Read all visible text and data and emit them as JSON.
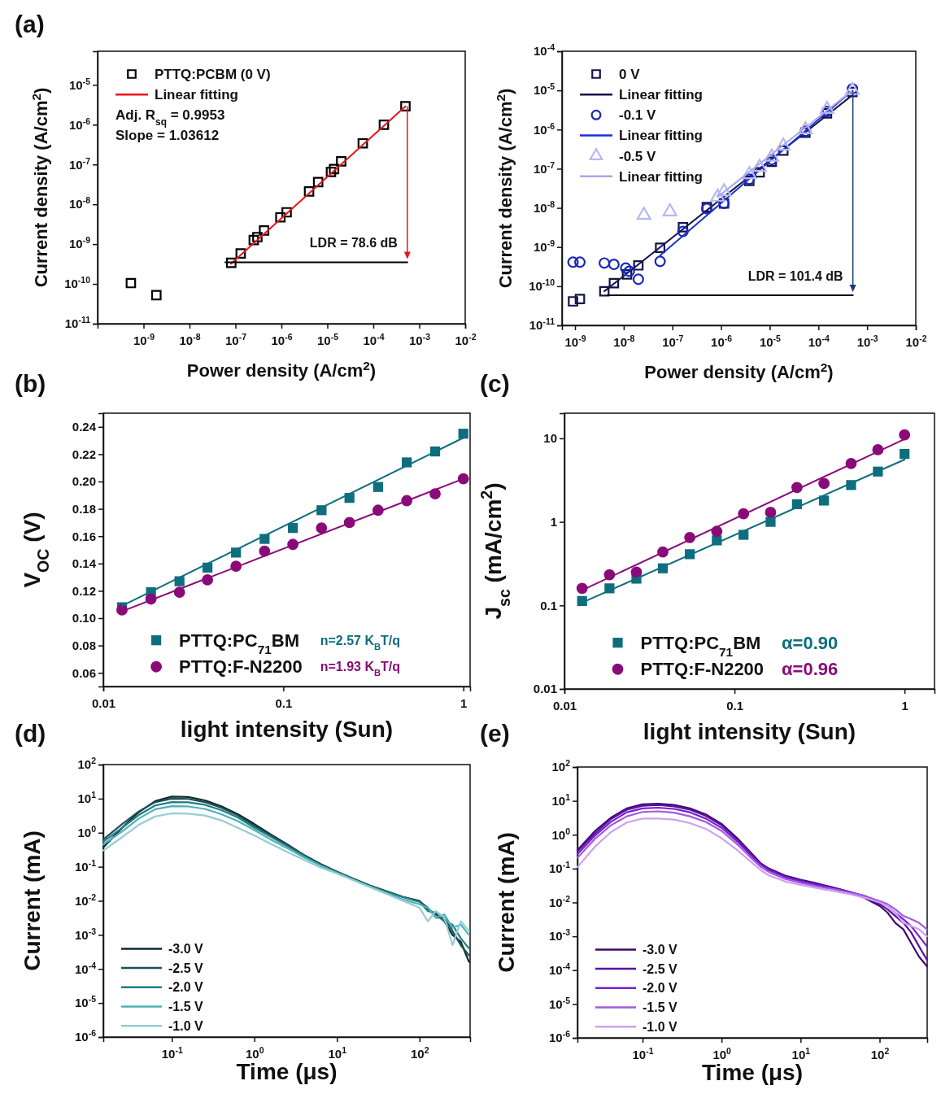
{
  "chart_data": [
    {
      "type": "scatter",
      "title": "(a)",
      "xlabel": "Power density (A/cm$^{2}$)",
      "ylabel": "Current density (A/cm$^{2}$)",
      "log": "xy",
      "legend": "top left",
      "xlim": [
        1e-10,
        0.01
      ],
      "ylim": [
        1e-11,
        7e-05
      ],
      "xticks": [
        {
          "value": 1e-09,
          "label": "10$^{-9}$"
        },
        {
          "value": 1e-08,
          "label": "10$^{-8}$"
        },
        {
          "value": 1e-07,
          "label": "10$^{-7}$"
        },
        {
          "value": 1e-06,
          "label": "10$^{-6}$"
        },
        {
          "value": 1e-05,
          "label": "10$^{-5}$"
        },
        {
          "value": 0.0001,
          "label": "10$^{-4}$"
        },
        {
          "value": 0.001,
          "label": "10$^{-3}$"
        },
        {
          "value": 0.01,
          "label": "10$^{-2}$"
        }
      ],
      "yticks": [
        {
          "value": 1e-11,
          "label": "10$^{-11}$"
        },
        {
          "value": 1e-10,
          "label": "10$^{-10}$"
        },
        {
          "value": 1e-09,
          "label": "10$^{-9}$"
        },
        {
          "value": 1e-08,
          "label": "10$^{-8}$"
        },
        {
          "value": 1e-07,
          "label": "10$^{-7}$"
        },
        {
          "value": 1e-06,
          "label": "10$^{-6}$"
        },
        {
          "value": 1e-05,
          "label": "10$^{-5}$"
        }
      ],
      "series": [
        {
          "name": "PTTQ:PCBM (0 V)",
          "type": "scatter",
          "marker": "square",
          "color": "#000000",
          "x": [
            5.3e-10,
            1.9e-09,
            8.1e-08,
            1.3e-07,
            2.5e-07,
            3e-07,
            4.2e-07,
            9.5e-07,
            1.3e-06,
            4e-06,
            6.3e-06,
            1.2e-05,
            1.4e-05,
            2e-05,
            5.9e-05,
            0.00017,
            0.0005
          ],
          "values": [
            1.05e-10,
            5.2e-11,
            3.4e-10,
            5.8e-10,
            1.26e-09,
            1.5e-09,
            2.2e-09,
            4.7e-09,
            6.3e-09,
            2.1e-08,
            3.6e-08,
            6.5e-08,
            7.7e-08,
            1.2e-07,
            3.4e-07,
            1e-06,
            2.9e-06
          ]
        },
        {
          "name": "Linear fitting",
          "type": "line",
          "color": "#e8141c",
          "x": [
            8e-08,
            0.0005
          ],
          "values": [
            3.2e-10,
            2.9e-06
          ]
        },
        {
          "type": "line",
          "color": "#000000",
          "x": [
            6e-08,
            0.00055
          ],
          "values": [
            3.5e-10,
            3.5e-10
          ]
        }
      ],
      "annotations": [
        "Adj. R$_{sq}$ = 0.9953",
        "Slope = 1.03612",
        "LDR = 78.6 dB"
      ]
    },
    {
      "type": "scatter",
      "xlabel": "Power density (A/cm$^{2}$)",
      "ylabel": "Current density (A/cm$^{2}$)",
      "log": "xy",
      "legend": "top left",
      "xlim": [
        5.4e-10,
        0.01
      ],
      "ylim": [
        1e-11,
        0.0001
      ],
      "xticks": [
        {
          "value": 1e-09,
          "label": "10$^{-9}$"
        },
        {
          "value": 1e-08,
          "label": "10$^{-8}$"
        },
        {
          "value": 1e-07,
          "label": "10$^{-7}$"
        },
        {
          "value": 1e-06,
          "label": "10$^{-6}$"
        },
        {
          "value": 1e-05,
          "label": "10$^{-5}$"
        },
        {
          "value": 0.0001,
          "label": "10$^{-4}$"
        },
        {
          "value": 0.001,
          "label": "10$^{-3}$"
        },
        {
          "value": 0.01,
          "label": "10$^{-2}$"
        }
      ],
      "yticks": [
        {
          "value": 1e-11,
          "label": "10$^{-11}$"
        },
        {
          "value": 1e-10,
          "label": "10$^{-10}$"
        },
        {
          "value": 1e-09,
          "label": "10$^{-9}$"
        },
        {
          "value": 1e-08,
          "label": "10$^{-8}$"
        },
        {
          "value": 1e-07,
          "label": "10$^{-7}$"
        },
        {
          "value": 1e-06,
          "label": "10$^{-6}$"
        },
        {
          "value": 1e-05,
          "label": "10$^{-5}$"
        },
        {
          "value": 0.0001,
          "label": "10$^{-4}$"
        }
      ],
      "series": [
        {
          "name": "0 V",
          "type": "scatter",
          "marker": "square",
          "color": "#14144a",
          "x": [
            9.1e-10,
            1.26e-09,
            4e-09,
            6.3e-09,
            1.17e-08,
            2e-08,
            5.6e-08,
            1.65e-07,
            5.1e-07,
            1.15e-06,
            3.8e-06,
            6.2e-06,
            1.1e-05,
            1.9e-05,
            5.4e-05,
            0.00015,
            0.0005
          ],
          "values": [
            4.1e-11,
            4.7e-11,
            7.4e-11,
            1.2e-10,
            2e-10,
            3.4e-10,
            9.6e-10,
            3.2e-09,
            1.05e-08,
            1.3e-08,
            4.9e-08,
            8.1e-08,
            1.5e-07,
            2.9e-07,
            8.3e-07,
            2.6e-06,
            9.1e-06
          ]
        },
        {
          "name": "Linear fitting",
          "type": "line",
          "color": "#14144a",
          "x": [
            4e-09,
            0.0005
          ],
          "values": [
            7.4e-11,
            7.6e-06
          ]
        },
        {
          "name": "-0.1 V",
          "type": "scatter",
          "marker": "circle",
          "color": "#1a28b8",
          "x": [
            9.1e-10,
            1.26e-09,
            4e-09,
            6.3e-09,
            1.1e-08,
            1.3e-08,
            2e-08,
            5.6e-08,
            1.65e-07,
            5.1e-07,
            1.15e-06,
            3.8e-06,
            1.1e-05,
            5.4e-05,
            0.00015,
            0.0005
          ],
          "values": [
            4.1e-10,
            4.1e-10,
            3.9e-10,
            3.6e-10,
            2.9e-10,
            2.4e-10,
            1.5e-10,
            4.3e-10,
            2.5e-09,
            9.6e-09,
            1.3e-08,
            5.4e-08,
            1.7e-07,
            9.1e-07,
            2.9e-06,
            1.1e-05
          ]
        },
        {
          "name": "Linear fitting",
          "type": "line",
          "color": "#1c30d8",
          "x": [
            5.6e-08,
            0.0005
          ],
          "values": [
            6.1e-10,
            1e-05
          ]
        },
        {
          "name": "-0.5 V",
          "type": "scatter",
          "marker": "triangle",
          "color": "#b8b8f2",
          "x": [
            2.6e-08,
            8.9e-08,
            8.5e-07,
            1.15e-06,
            3.8e-06,
            6.2e-06,
            1.1e-05,
            1.9e-05,
            5.4e-05,
            0.00015,
            0.0005
          ],
          "values": [
            6.5e-09,
            8e-09,
            1.9e-08,
            2.6e-08,
            7.1e-08,
            1.1e-07,
            2e-07,
            3.8e-07,
            1e-06,
            3.3e-06,
            1e-05
          ]
        },
        {
          "name": "Linear fitting",
          "type": "line",
          "color": "#a8a8ee",
          "x": [
            8.5e-07,
            0.0005
          ],
          "values": [
            1.9e-08,
            1e-05
          ]
        },
        {
          "type": "line",
          "color": "#000000",
          "x": [
            4.6e-09,
            0.00051
          ],
          "values": [
            5.9e-11,
            5.9e-11
          ]
        }
      ],
      "annotations": [
        "LDR = 101.4 dB"
      ]
    },
    {
      "type": "scatter",
      "title": "(b)",
      "xlabel": "light intensity (Sun)",
      "ylabel": "V$_{OC}$ (V)",
      "log": "x",
      "legend": "bottom",
      "xlim": [
        0.01,
        1.09
      ],
      "ylim": [
        0.05,
        0.25
      ],
      "xticks": [
        0.01,
        0.1,
        1
      ],
      "yticks": [
        0.06,
        0.08,
        {
          "value": 0.1,
          "label": "0.10"
        },
        0.12,
        0.14,
        0.16,
        0.18,
        {
          "value": 0.2,
          "label": "0.20"
        },
        0.22,
        0.24
      ],
      "x": [
        0.0127,
        0.0184,
        0.0265,
        0.0379,
        0.0546,
        0.0787,
        0.113,
        0.163,
        0.233,
        0.336,
        0.485,
        0.697,
        1
      ],
      "series": [
        {
          "name": "PTTQ:PC$_{71}$BM",
          "type": "scatter",
          "marker": "square",
          "color": "#0e6e7e",
          "values": [
            0.108,
            0.119,
            0.127,
            0.137,
            0.148,
            0.158,
            0.166,
            0.179,
            0.188,
            0.196,
            0.214,
            0.222,
            0.235
          ]
        },
        {
          "name": "PTTQ:F-N2200",
          "type": "scatter",
          "marker": "circle",
          "color": "#8b0a7a",
          "values": [
            0.106,
            0.114,
            0.119,
            0.128,
            0.138,
            0.149,
            0.154,
            0.166,
            0.17,
            0.179,
            0.186,
            0.191,
            0.202
          ]
        },
        {
          "type": "line",
          "color": "#0e6e7e",
          "x": [
            0.0127,
            1
          ],
          "values": [
            0.109,
            0.232
          ]
        },
        {
          "type": "line",
          "color": "#8b0a7a",
          "x": [
            0.0127,
            1
          ],
          "values": [
            0.105,
            0.202
          ]
        }
      ],
      "annotations": [
        "n=2.57 K$_{B}$T/q",
        "n=1.93 K$_{B}$T/q"
      ]
    },
    {
      "type": "scatter",
      "title": "(c)",
      "xlabel": "light intensity (Sun)",
      "ylabel": "J$_{sc}$ (mA/cm$^{2}$)",
      "log": "xy",
      "legend": "bottom",
      "xlim": [
        0.01,
        1.5
      ],
      "ylim": [
        0.01,
        20
      ],
      "xticks": [
        0.01,
        0.1,
        1
      ],
      "yticks": [
        0.01,
        0.1,
        1,
        10
      ],
      "x": [
        0.0127,
        0.0184,
        0.0265,
        0.0379,
        0.0546,
        0.0787,
        0.113,
        0.163,
        0.233,
        0.336,
        0.485,
        0.697,
        1
      ],
      "series": [
        {
          "name": "PTTQ:PC$_{71}$BM",
          "type": "scatter",
          "marker": "square",
          "color": "#0e6e7e",
          "values": [
            0.113,
            0.16,
            0.209,
            0.278,
            0.41,
            0.6,
            0.7,
            1.0,
            1.63,
            1.8,
            2.76,
            4.0,
            6.5
          ]
        },
        {
          "name": "PTTQ:F-N2200",
          "type": "scatter",
          "marker": "circle",
          "color": "#8b0a7a",
          "values": [
            0.16,
            0.233,
            0.25,
            0.436,
            0.65,
            0.77,
            1.25,
            1.3,
            2.58,
            2.88,
            5.0,
            7.3,
            11
          ]
        },
        {
          "type": "line",
          "color": "#0e6e7e",
          "x": [
            0.0127,
            1
          ],
          "values": [
            0.108,
            5.57
          ]
        },
        {
          "type": "line",
          "color": "#8b0a7a",
          "x": [
            0.0127,
            1
          ],
          "values": [
            0.152,
            9.8
          ]
        }
      ],
      "annotations": [
        "α=0.90",
        "α=0.96"
      ]
    },
    {
      "type": "line",
      "title": "(d)",
      "xlabel": "Time (μs)",
      "ylabel": "Current (mA)",
      "log": "xy",
      "legend": "bottom left",
      "xlim": [
        0.0148,
        410
      ],
      "ylim": [
        1e-06,
        100
      ],
      "xticks": [
        {
          "value": 0.1,
          "label": "10$^{-1}$"
        },
        {
          "value": 1,
          "label": "10$^{0}$"
        },
        {
          "value": 10,
          "label": "10$^{1}$"
        },
        {
          "value": 100,
          "label": "10$^{2}$"
        }
      ],
      "yticks": [
        {
          "value": 1e-06,
          "label": "10$^{-6}$"
        },
        {
          "value": 1e-05,
          "label": "10$^{-5}$"
        },
        {
          "value": 0.0001,
          "label": "10$^{-4}$"
        },
        {
          "value": 0.001,
          "label": "10$^{-3}$"
        },
        {
          "value": 0.01,
          "label": "10$^{-2}$"
        },
        {
          "value": 0.1,
          "label": "10$^{-1}$"
        },
        {
          "value": 1,
          "label": "10$^{0}$"
        },
        {
          "value": 10,
          "label": "10$^{1}$"
        },
        {
          "value": 100,
          "label": "10$^{2}$"
        }
      ],
      "x": [
        0.0148,
        0.0251,
        0.0398,
        0.0631,
        0.1,
        0.158,
        0.251,
        0.398,
        0.631,
        1,
        1.58,
        2.51,
        3.98,
        6.31,
        10,
        15.8,
        25.1,
        39.8,
        63.1,
        100,
        126,
        158,
        200,
        251,
        316,
        398
      ],
      "series": [
        {
          "name": "-3.0 V",
          "color": "#0b2b2e",
          "values": [
            0.37,
            1.4,
            4.0,
            8.5,
            11.5,
            11.2,
            8.9,
            6.0,
            3.5,
            1.8,
            0.89,
            0.45,
            0.22,
            0.12,
            0.071,
            0.045,
            0.028,
            0.019,
            0.013,
            0.01,
            0.0056,
            0.004,
            0.0025,
            0.001,
            0.00063,
            0.00016
          ]
        },
        {
          "name": "-2.5 V",
          "color": "#1f4f52",
          "values": [
            0.63,
            1.8,
            4.2,
            7.9,
            10,
            9.8,
            7.9,
            5.4,
            3.2,
            1.6,
            0.83,
            0.43,
            0.22,
            0.12,
            0.071,
            0.044,
            0.028,
            0.019,
            0.013,
            0.0095,
            0.0063,
            0.0032,
            0.0032,
            0.0013,
            0.0005,
            0.00025
          ]
        },
        {
          "name": "-2.0 V",
          "color": "#1f7f86",
          "values": [
            0.54,
            1.4,
            3.3,
            6.3,
            7.9,
            7.8,
            6.6,
            4.6,
            2.8,
            1.4,
            0.76,
            0.4,
            0.21,
            0.11,
            0.069,
            0.043,
            0.027,
            0.018,
            0.013,
            0.0093,
            0.005,
            0.0045,
            0.0025,
            0.002,
            0.00079,
            0.0004
          ]
        },
        {
          "name": "-1.5 V",
          "color": "#4fb0b8",
          "values": [
            0.45,
            1.1,
            2.6,
            4.9,
            6.0,
            5.9,
            5.0,
            3.5,
            2.2,
            1.2,
            0.63,
            0.35,
            0.19,
            0.11,
            0.066,
            0.042,
            0.026,
            0.017,
            0.011,
            0.0079,
            0.0063,
            0.0032,
            0.004,
            0.0016,
            0.002,
            0.001
          ]
        },
        {
          "name": "-1.0 V",
          "color": "#93cdd2",
          "values": [
            0.3,
            0.74,
            1.7,
            3.0,
            3.7,
            3.6,
            3.2,
            2.3,
            1.4,
            0.83,
            0.47,
            0.27,
            0.16,
            0.095,
            0.063,
            0.04,
            0.025,
            0.016,
            0.01,
            0.0063,
            0.0025,
            0.005,
            0.0032,
            0.0005,
            0.0025,
            0.0013
          ]
        }
      ]
    },
    {
      "type": "line",
      "title": "(e)",
      "xlabel": "Time (μs)",
      "ylabel": "Current (mA)",
      "log": "xy",
      "legend": "bottom left",
      "xlim": [
        0.015,
        400
      ],
      "ylim": [
        1e-06,
        100
      ],
      "xticks": [
        {
          "value": 0.1,
          "label": "10$^{-1}$"
        },
        {
          "value": 1,
          "label": "10$^{0}$"
        },
        {
          "value": 10,
          "label": "10$^{1}$"
        },
        {
          "value": 100,
          "label": "10$^{2}$"
        }
      ],
      "yticks": [
        {
          "value": 1e-06,
          "label": "10$^{-6}$"
        },
        {
          "value": 1e-05,
          "label": "10$^{-5}$"
        },
        {
          "value": 0.0001,
          "label": "10$^{-4}$"
        },
        {
          "value": 0.001,
          "label": "10$^{-3}$"
        },
        {
          "value": 0.01,
          "label": "10$^{-2}$"
        },
        {
          "value": 0.1,
          "label": "10$^{-1}$"
        },
        {
          "value": 1,
          "label": "10$^{0}$"
        },
        {
          "value": 10,
          "label": "10$^{1}$"
        },
        {
          "value": 100,
          "label": "10$^{2}$"
        }
      ],
      "x": [
        0.015,
        0.0251,
        0.0398,
        0.0631,
        0.1,
        0.158,
        0.251,
        0.398,
        0.631,
        1,
        1.58,
        2.51,
        3.16,
        3.98,
        6.31,
        10,
        15.8,
        25.1,
        39.8,
        63.1,
        100,
        126,
        158,
        200,
        251,
        316,
        398
      ],
      "series": [
        {
          "name": "-3.0 V",
          "color": "#3d0a70",
          "values": [
            0.35,
            1.3,
            3.2,
            6.0,
            7.9,
            8.3,
            7.6,
            6.0,
            4.0,
            2.1,
            0.79,
            0.25,
            0.14,
            0.1,
            0.063,
            0.047,
            0.037,
            0.028,
            0.021,
            0.014,
            0.0079,
            0.005,
            0.0025,
            0.0016,
            0.00063,
            0.00025,
            0.00013
          ]
        },
        {
          "name": "-2.5 V",
          "color": "#5a12a0",
          "values": [
            0.32,
            1.1,
            2.9,
            5.5,
            7.2,
            7.6,
            6.9,
            5.5,
            3.6,
            1.9,
            0.72,
            0.23,
            0.13,
            0.095,
            0.06,
            0.045,
            0.035,
            0.028,
            0.021,
            0.015,
            0.0089,
            0.0063,
            0.004,
            0.0025,
            0.0013,
            0.0005,
            0.0002
          ]
        },
        {
          "name": "-2.0 V",
          "color": "#7a1fd0",
          "values": [
            0.27,
            0.95,
            2.4,
            4.6,
            6.0,
            6.3,
            5.8,
            4.6,
            3.0,
            1.6,
            0.63,
            0.21,
            0.13,
            0.089,
            0.056,
            0.042,
            0.033,
            0.026,
            0.021,
            0.016,
            0.01,
            0.0079,
            0.005,
            0.0032,
            0.002,
            0.001,
            0.0005
          ]
        },
        {
          "name": "-1.5 V",
          "color": "#a35ae0",
          "values": [
            0.21,
            0.76,
            1.9,
            3.5,
            4.7,
            4.9,
            4.5,
            3.5,
            2.4,
            1.3,
            0.52,
            0.18,
            0.11,
            0.079,
            0.05,
            0.038,
            0.03,
            0.025,
            0.02,
            0.016,
            0.011,
            0.0089,
            0.0063,
            0.004,
            0.0032,
            0.0025,
            0.0016
          ]
        },
        {
          "name": "-1.0 V",
          "color": "#cfa0f0",
          "values": [
            0.11,
            0.45,
            1.2,
            2.3,
            3.0,
            3.0,
            2.8,
            2.2,
            1.5,
            0.79,
            0.35,
            0.14,
            0.089,
            0.063,
            0.042,
            0.033,
            0.027,
            0.022,
            0.018,
            0.014,
            0.01,
            0.0079,
            0.005,
            0.0025,
            0.002,
            0.0016,
            0.001
          ]
        }
      ]
    }
  ]
}
